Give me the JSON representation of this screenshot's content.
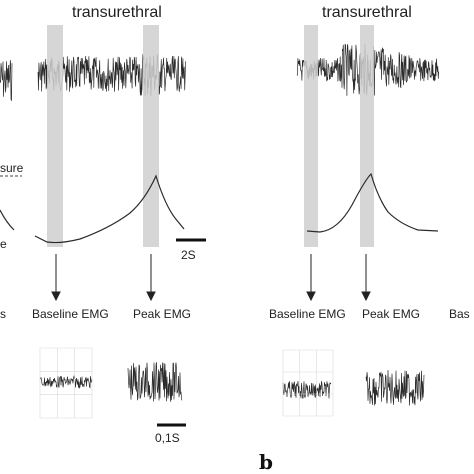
{
  "figure": {
    "left_partial_labels": {
      "pressure_fragment": "sure",
      "e_fragment": "e",
      "s_fragment": "s"
    },
    "panel_left": {
      "title": "transurethral",
      "scale_time": "2S",
      "scale_zoom": "0,1S",
      "baseline_label": "Baseline EMG",
      "peak_label": "Peak EMG"
    },
    "panel_right": {
      "title": "transurethral",
      "baseline_label": "Baseline EMG",
      "peak_label": "Peak EMG",
      "cut_label": "Bas"
    },
    "panel_letter": "b",
    "colors": {
      "trace": "#2b2b2b",
      "shade": "#cfcfcf",
      "grid": "#d8d8d8"
    }
  }
}
